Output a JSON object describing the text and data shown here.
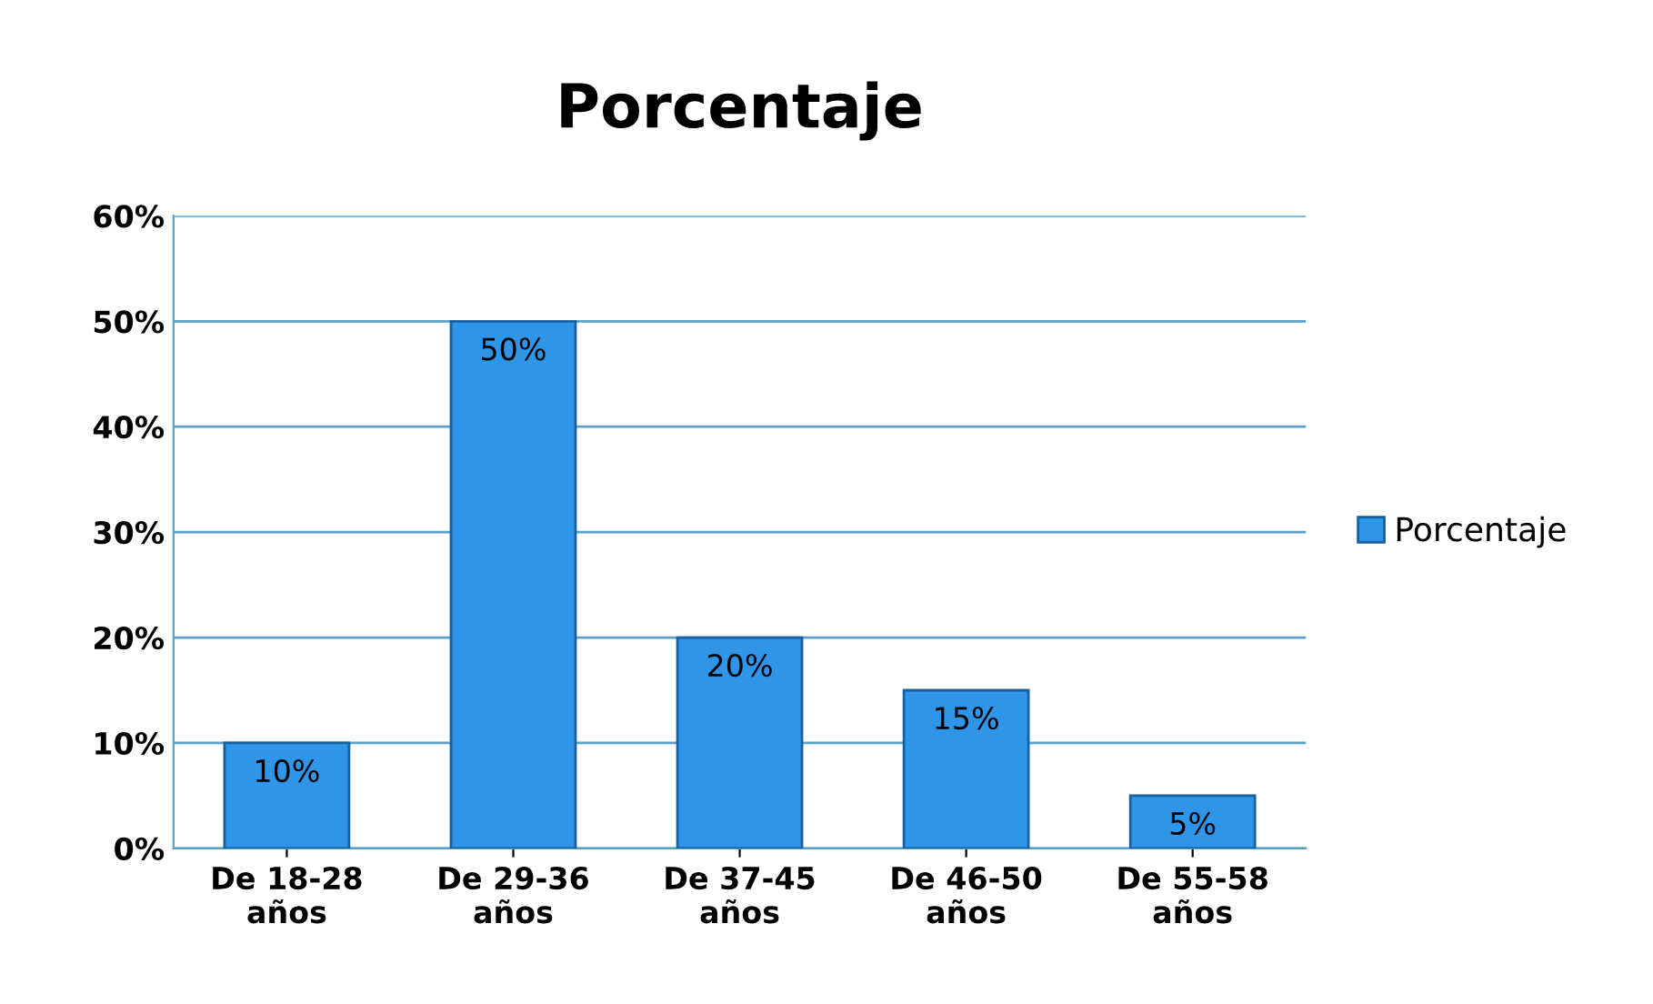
{
  "chart_data": {
    "type": "bar",
    "title": "Porcentaje",
    "categories": [
      "De 18-28\naños",
      "De 29-36\naños",
      "De 37-45\naños",
      "De 46-50\naños",
      "De 55-58\naños"
    ],
    "series": [
      {
        "name": "Porcentaje",
        "color": "#2f95e8",
        "values": [
          10,
          50,
          20,
          15,
          5
        ],
        "value_labels": [
          "10%",
          "50%",
          "20%",
          "15%",
          "5%"
        ]
      }
    ],
    "ylim": [
      0,
      60
    ],
    "yticks": [
      {
        "value": 0,
        "label": "0%"
      },
      {
        "value": 10,
        "label": "10%"
      },
      {
        "value": 20,
        "label": "20%"
      },
      {
        "value": 30,
        "label": "30%"
      },
      {
        "value": 40,
        "label": "40%"
      },
      {
        "value": 50,
        "label": "50%"
      },
      {
        "value": 60,
        "label": "60%"
      }
    ],
    "grid": "y",
    "legend": "right"
  }
}
